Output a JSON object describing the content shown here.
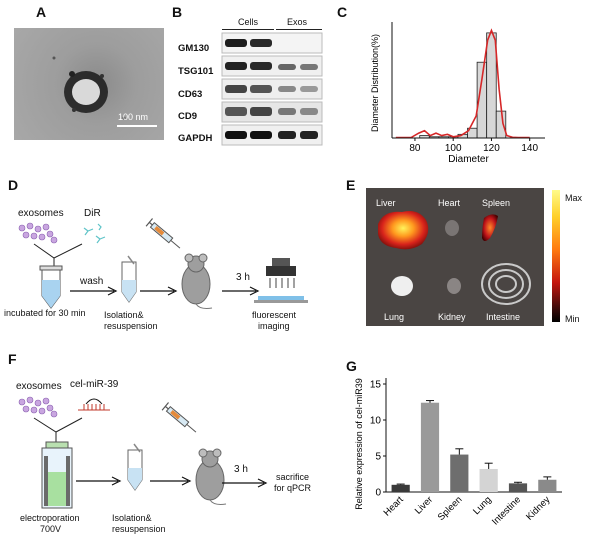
{
  "panels": {
    "A": {
      "letter": "A",
      "scale_bar": "100 nm"
    },
    "B": {
      "letter": "B",
      "col_cells": "Cells",
      "col_exos": "Exos",
      "rows": [
        {
          "label": "GM130"
        },
        {
          "label": "TSG101"
        },
        {
          "label": "CD63"
        },
        {
          "label": "CD9"
        },
        {
          "label": "GAPDH"
        }
      ]
    },
    "C": {
      "letter": "C"
    },
    "D": {
      "letter": "D",
      "exosomes": "exosomes",
      "dir": "DiR",
      "wash": "wash",
      "incubated": "incubated for 30 min",
      "isolation1": "Isolation&",
      "isolation2": "resuspension",
      "time": "3 h",
      "fluorescent1": "fluorescent",
      "fluorescent2": "imaging"
    },
    "E": {
      "letter": "E",
      "max": "Max",
      "min": "Min",
      "organs": {
        "liver": "Liver",
        "heart": "Heart",
        "spleen": "Spleen",
        "lung": "Lung",
        "kidney": "Kidney",
        "intestine": "Intestine"
      }
    },
    "F": {
      "letter": "F",
      "exosomes": "exosomes",
      "mirna": "cel-miR-39",
      "electroporation1": "electroporation",
      "electroporation2": "700V",
      "isolation1": "Isolation&",
      "isolation2": "resuspension",
      "time": "3 h",
      "sacrifice1": "sacrifice",
      "sacrifice2": "for qPCR"
    },
    "G": {
      "letter": "G"
    }
  },
  "chart_data": [
    {
      "panel": "C",
      "type": "bar",
      "xlabel": "Diameter",
      "ylabel": "Diameter Distribution(%)",
      "xticks": [
        80,
        100,
        120,
        140
      ],
      "xlim": [
        68,
        148
      ],
      "ylim": [
        0,
        45
      ],
      "bars": {
        "x": [
          85,
          90,
          95,
          100,
          105,
          110,
          115,
          120,
          125,
          130
        ],
        "values": [
          1,
          0.5,
          0.5,
          0.5,
          1.5,
          4,
          31,
          43,
          11,
          0
        ]
      },
      "fit": {
        "x": [
          70,
          78,
          82,
          85,
          88,
          91,
          94,
          97,
          100,
          104,
          108,
          112,
          115,
          118,
          120,
          122,
          124,
          126,
          128,
          131,
          134,
          140
        ],
        "values": [
          0.2,
          0.2,
          2,
          3,
          1,
          2,
          1,
          1.5,
          0.5,
          1,
          3,
          9,
          24,
          40,
          44,
          40,
          20,
          6,
          1,
          0.3,
          0.2,
          0.2
        ]
      },
      "colors": {
        "bars": "#d7d7d7",
        "fit": "#d62728"
      }
    },
    {
      "panel": "G",
      "type": "bar",
      "categories": [
        "Heart",
        "Liver",
        "Spleen",
        "Lung",
        "Intestine",
        "Kidney"
      ],
      "values": [
        1.0,
        12.4,
        5.2,
        3.2,
        1.2,
        1.7
      ],
      "errors": [
        0.1,
        0.3,
        0.8,
        0.8,
        0.15,
        0.4
      ],
      "ylabel": "Relative expression of cel-miR39",
      "ylim": [
        0,
        15
      ],
      "yticks": [
        0,
        5,
        10,
        15
      ],
      "colors": [
        "#3a3a3a",
        "#9a9a9a",
        "#6e6e6e",
        "#d4d4d4",
        "#555555",
        "#8a8a8a"
      ]
    }
  ]
}
